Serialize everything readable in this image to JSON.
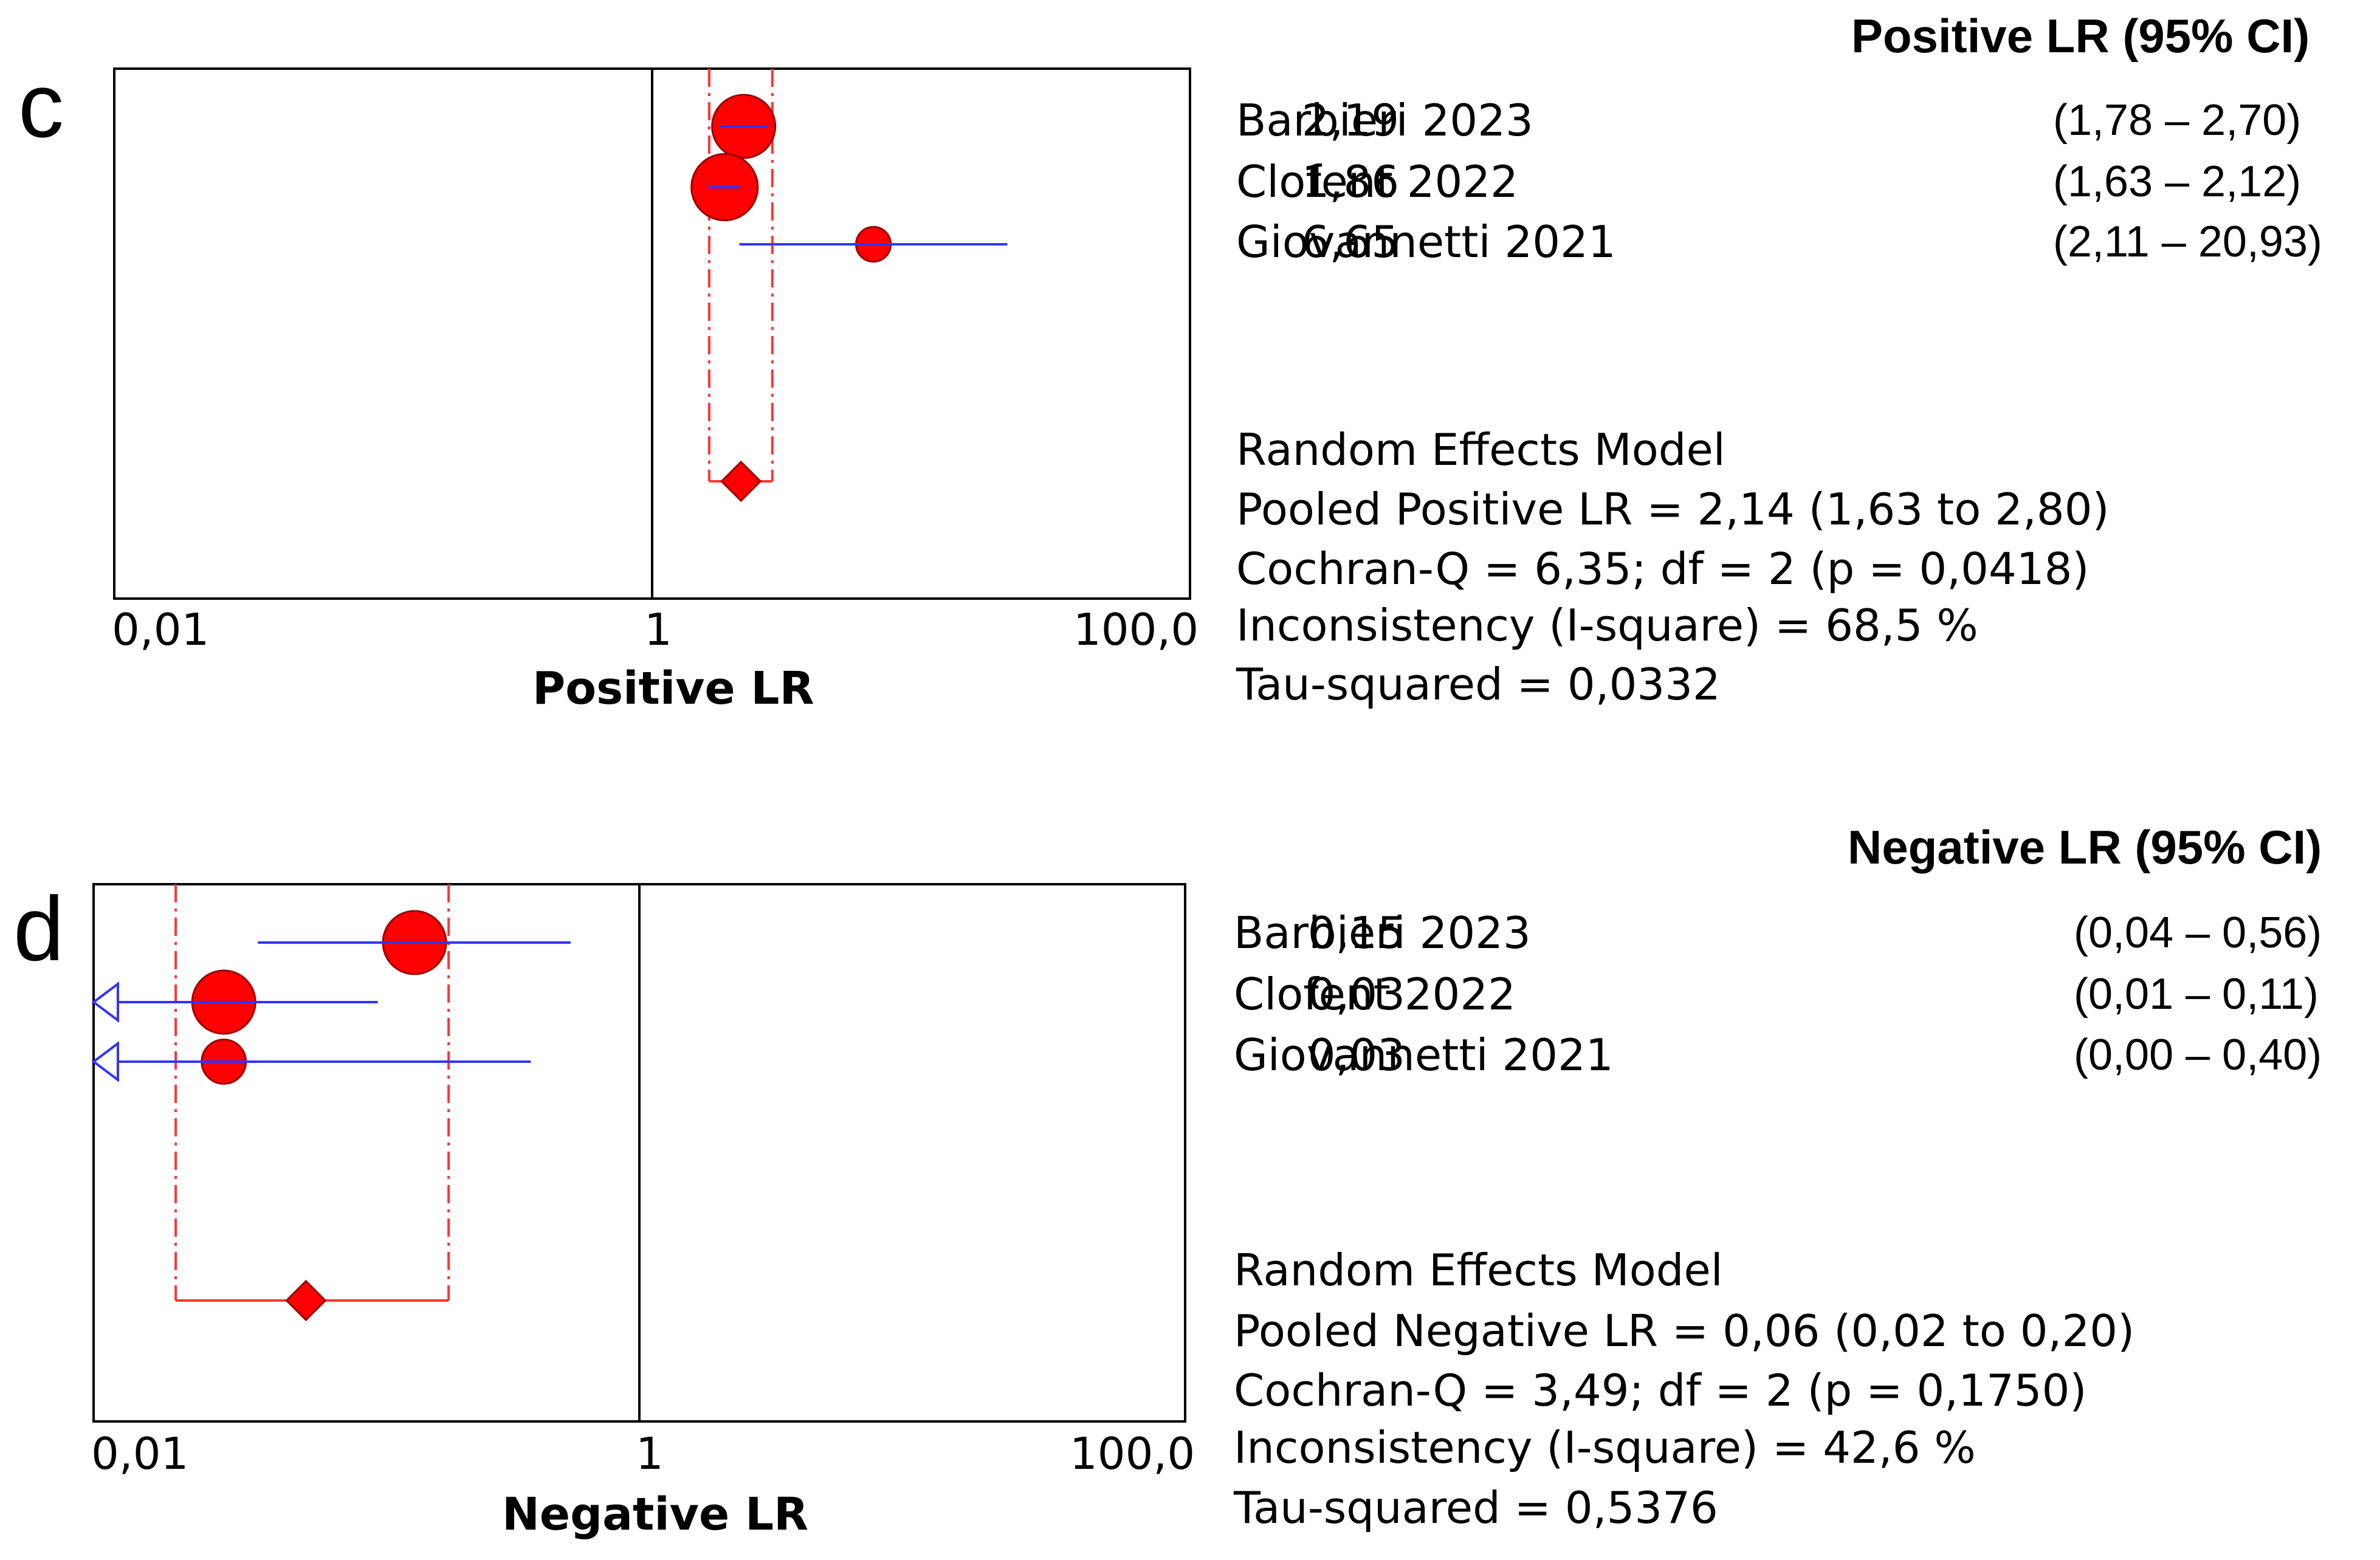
{
  "chart_data": [
    {
      "type": "forest",
      "panel_label": "c",
      "xlabel": "Positive LR",
      "x_scale": "log",
      "xlim": [
        0.01,
        100
      ],
      "x_ticks": [
        "0,01",
        "1",
        "100,0"
      ],
      "header": "Positive LR (95% CI)",
      "studies": [
        {
          "name": "Barbieri 2023",
          "estimate": 2.19,
          "lower": 1.78,
          "upper": 2.7,
          "estimate_label": "2,19",
          "ci_label": "(1,78 – 2,70)",
          "weight": 1.0
        },
        {
          "name": "Clofent 2022",
          "estimate": 1.86,
          "lower": 1.63,
          "upper": 2.12,
          "estimate_label": "1,86",
          "ci_label": "(1,63 – 2,12)",
          "weight": 1.05
        },
        {
          "name": "Giovannetti 2021",
          "estimate": 6.65,
          "lower": 2.11,
          "upper": 20.93,
          "estimate_label": "6,65",
          "ci_label": "(2,11 – 20,93)",
          "weight": 0.55
        }
      ],
      "pooled": {
        "estimate": 2.14,
        "lower": 1.63,
        "upper": 2.8
      },
      "summary_lines": [
        "Random Effects Model",
        "Pooled Positive LR = 2,14 (1,63 to 2,80)",
        "Cochran-Q = 6,35; df =  2 (p = 0,0418)",
        "Inconsistency (I-square) = 68,5 %",
        "Tau-squared = 0,0332"
      ]
    },
    {
      "type": "forest",
      "panel_label": "d",
      "xlabel": "Negative LR",
      "x_scale": "log",
      "xlim": [
        0.01,
        100
      ],
      "x_ticks": [
        "0,01",
        "1",
        "100,0"
      ],
      "header": "Negative LR (95% CI)",
      "studies": [
        {
          "name": "Barbieri 2023",
          "estimate": 0.15,
          "lower": 0.04,
          "upper": 0.56,
          "estimate_label": "0,15",
          "ci_label": "(0,04 – 0,56)",
          "weight": 1.0
        },
        {
          "name": "Clofent 2022",
          "estimate": 0.03,
          "lower": 0.01,
          "upper": 0.11,
          "estimate_label": "0,03",
          "ci_label": "(0,01 – 0,11)",
          "weight": 1.0
        },
        {
          "name": "Giovannetti 2021",
          "estimate": 0.03,
          "lower": 0.0,
          "upper": 0.4,
          "estimate_label": "0,03",
          "ci_label": "(0,00 – 0,40)",
          "weight": 0.7
        }
      ],
      "pooled": {
        "estimate": 0.06,
        "lower": 0.02,
        "upper": 0.2
      },
      "summary_lines": [
        "Random Effects Model",
        "Pooled Negative LR = 0,06 (0,02 to 0,20)",
        "Cochran-Q = 3,49; df =  2 (p = 0,1750)",
        "Inconsistency (I-square) = 42,6 %",
        "Tau-squared = 0,5376"
      ]
    }
  ],
  "colors": {
    "marker_fill": "#ff0000",
    "marker_stroke": "#990000",
    "ci_line": "#3333ff",
    "pooled_bounds": "#ff3333",
    "axis": "#000000"
  }
}
